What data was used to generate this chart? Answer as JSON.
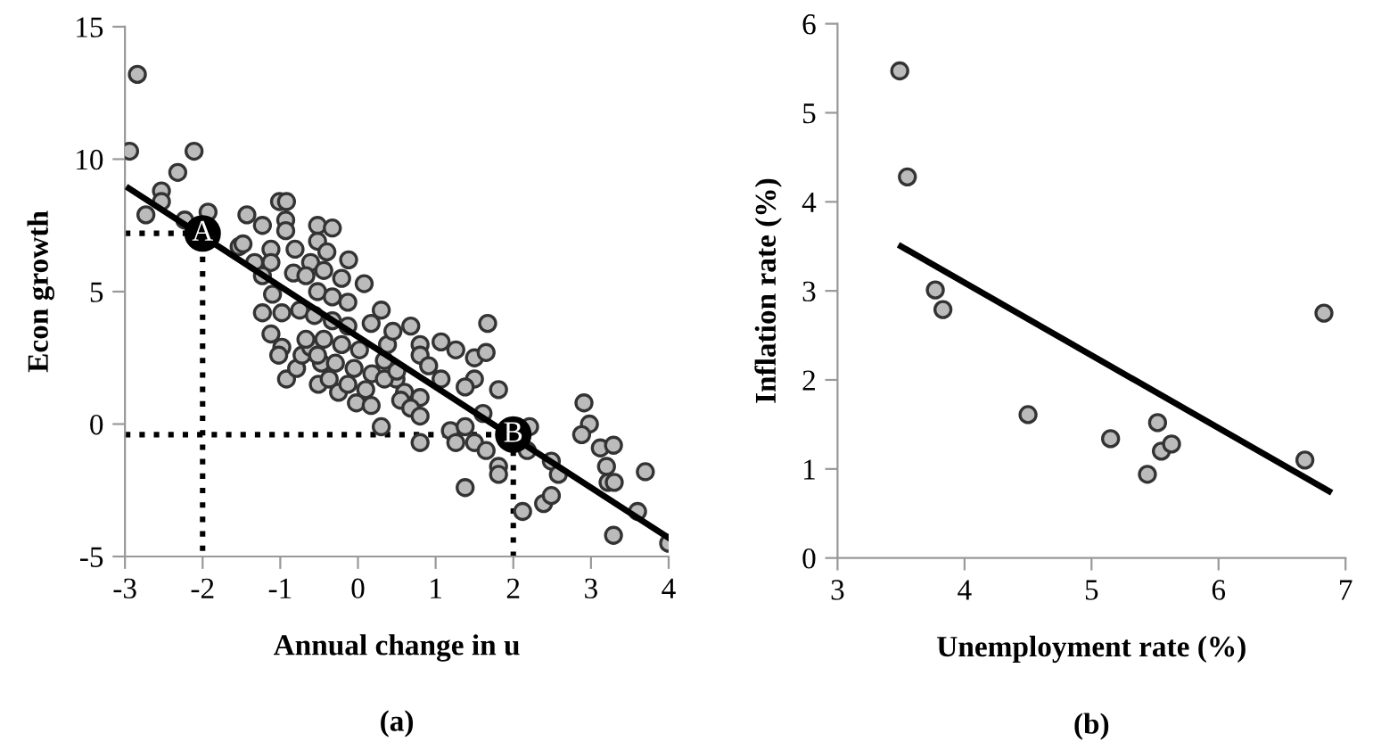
{
  "chart_data": [
    {
      "type": "scatter",
      "xlabel": "Annual change in u",
      "ylabel": "Econ growth",
      "xlim": [
        -3,
        4
      ],
      "ylim": [
        -5,
        15
      ],
      "xticks": [
        -3,
        -2,
        -1,
        0,
        1,
        2,
        3,
        4
      ],
      "yticks": [
        -5,
        0,
        5,
        10,
        15
      ],
      "grid": false,
      "annotations": [
        "(a)",
        {
          "text": "A",
          "x": -2,
          "y": 7.2
        },
        {
          "text": "B",
          "x": 2,
          "y": -0.4
        }
      ],
      "series": [
        {
          "type": "line",
          "marker": "none",
          "color": "#000000",
          "line_style": "dotted",
          "x": [
            -3,
            -2,
            -2
          ],
          "values": [
            7.2,
            7.2,
            -5
          ]
        },
        {
          "type": "line",
          "marker": "none",
          "color": "#000000",
          "line_style": "dotted",
          "x": [
            -3,
            2,
            2
          ],
          "values": [
            -0.4,
            -0.4,
            -5
          ]
        },
        {
          "marker": "circle",
          "color": "#bbbbbb",
          "x": [
            -2.84,
            -2.94,
            -2.11,
            -2.32,
            -2.53,
            -2.53,
            -2.73,
            -2.23,
            -1.93,
            -1.53,
            -1.48,
            -1.43,
            -1.23,
            -1.01,
            -0.92,
            -0.93,
            -0.93,
            -1.33,
            -1.12,
            -1.12,
            -0.52,
            -0.33,
            -0.52,
            -0.81,
            -0.61,
            -0.4,
            -0.12,
            -1.23,
            -1.1,
            -1.23,
            -0.98,
            -1.12,
            -0.98,
            -1.02,
            -0.92,
            -0.79,
            -0.72,
            -0.51,
            -0.61,
            -0.47,
            -0.25,
            -0.02,
            0.17,
            0.3,
            0.08,
            0.3,
            0.17,
            0.38,
            0.34,
            0.49,
            -0.83,
            -0.67,
            -0.44,
            -0.21,
            -0.52,
            -0.33,
            -0.13,
            -0.75,
            -0.56,
            -0.33,
            -0.13,
            -0.67,
            -0.44,
            -0.21,
            0.02,
            -0.52,
            -0.29,
            -0.05,
            0.18,
            -0.37,
            -0.13,
            0.1,
            0.34,
            0.5,
            0.6,
            0.45,
            0.55,
            0.68,
            0.8,
            0.8,
            0.91,
            1.07,
            1.26,
            1.5,
            1.65,
            1.67,
            1.5,
            1.38,
            1.81,
            1.07,
            0.8,
            0.68,
            0.8,
            1.61,
            1.19,
            1.26,
            1.5,
            1.38,
            0.8,
            1.65,
            1.81,
            1.81,
            1.38,
            2.12,
            2.21,
            2.18,
            2.49,
            2.58,
            2.39,
            2.49,
            2.91,
            2.98,
            2.88,
            3.12,
            3.29,
            3.2,
            3.22,
            3.3,
            3.29,
            3.7,
            3.6,
            4.0
          ],
          "values": [
            13.2,
            10.3,
            10.3,
            9.5,
            8.8,
            8.4,
            7.9,
            7.7,
            8.0,
            6.7,
            6.8,
            7.9,
            7.5,
            8.4,
            8.4,
            7.7,
            7.3,
            6.1,
            6.6,
            6.1,
            7.5,
            7.4,
            6.9,
            6.6,
            6.1,
            6.5,
            6.2,
            5.6,
            4.9,
            4.2,
            4.2,
            3.4,
            2.9,
            2.6,
            1.7,
            2.1,
            2.6,
            1.5,
            2.9,
            2.3,
            1.2,
            0.8,
            0.7,
            -0.1,
            5.3,
            4.3,
            3.8,
            3.0,
            2.4,
            1.7,
            5.7,
            5.6,
            5.8,
            5.5,
            5.0,
            4.8,
            4.6,
            4.3,
            4.1,
            3.9,
            3.7,
            3.2,
            3.2,
            3.0,
            2.8,
            2.6,
            2.3,
            2.1,
            1.9,
            1.7,
            1.5,
            1.3,
            1.7,
            2.0,
            1.2,
            3.5,
            0.9,
            3.7,
            3.0,
            2.6,
            2.2,
            3.1,
            2.8,
            2.5,
            2.7,
            3.8,
            1.7,
            1.4,
            1.3,
            1.7,
            1.0,
            0.6,
            0.3,
            0.4,
            -0.25,
            -0.7,
            -0.7,
            -0.1,
            -0.7,
            -1.0,
            -1.6,
            -1.9,
            -2.4,
            -3.3,
            -0.1,
            -1.0,
            -1.4,
            -1.9,
            -3.0,
            -2.7,
            0.8,
            0.0,
            -0.4,
            -0.9,
            -0.8,
            -1.6,
            -2.2,
            -2.2,
            -4.2,
            -1.8,
            -3.3,
            -4.5
          ]
        },
        {
          "type": "line",
          "marker": "none",
          "color": "#000000",
          "x": [
            -2.95,
            4
          ],
          "values": [
            8.9,
            -4.3
          ]
        }
      ]
    },
    {
      "type": "scatter",
      "xlabel": "Unemployment rate (%)",
      "ylabel": "Inflation rate (%)",
      "xlim": [
        3,
        7
      ],
      "ylim": [
        0,
        6
      ],
      "xticks": [
        3,
        4,
        5,
        6,
        7
      ],
      "yticks": [
        0,
        1,
        2,
        3,
        4,
        5,
        6
      ],
      "grid": false,
      "annotations": [
        "(b)"
      ],
      "series": [
        {
          "marker": "circle",
          "color": "#bbbbbb",
          "x": [
            3.49,
            3.55,
            3.77,
            3.83,
            4.5,
            5.15,
            5.52,
            5.44,
            5.55,
            5.63,
            6.68,
            6.83
          ],
          "values": [
            5.47,
            4.28,
            3.01,
            2.79,
            1.61,
            1.34,
            1.52,
            0.94,
            1.2,
            1.28,
            1.1,
            2.75
          ]
        },
        {
          "type": "line",
          "marker": "none",
          "color": "#000000",
          "x": [
            3.5,
            6.87
          ],
          "values": [
            3.5,
            0.75
          ]
        }
      ]
    }
  ]
}
